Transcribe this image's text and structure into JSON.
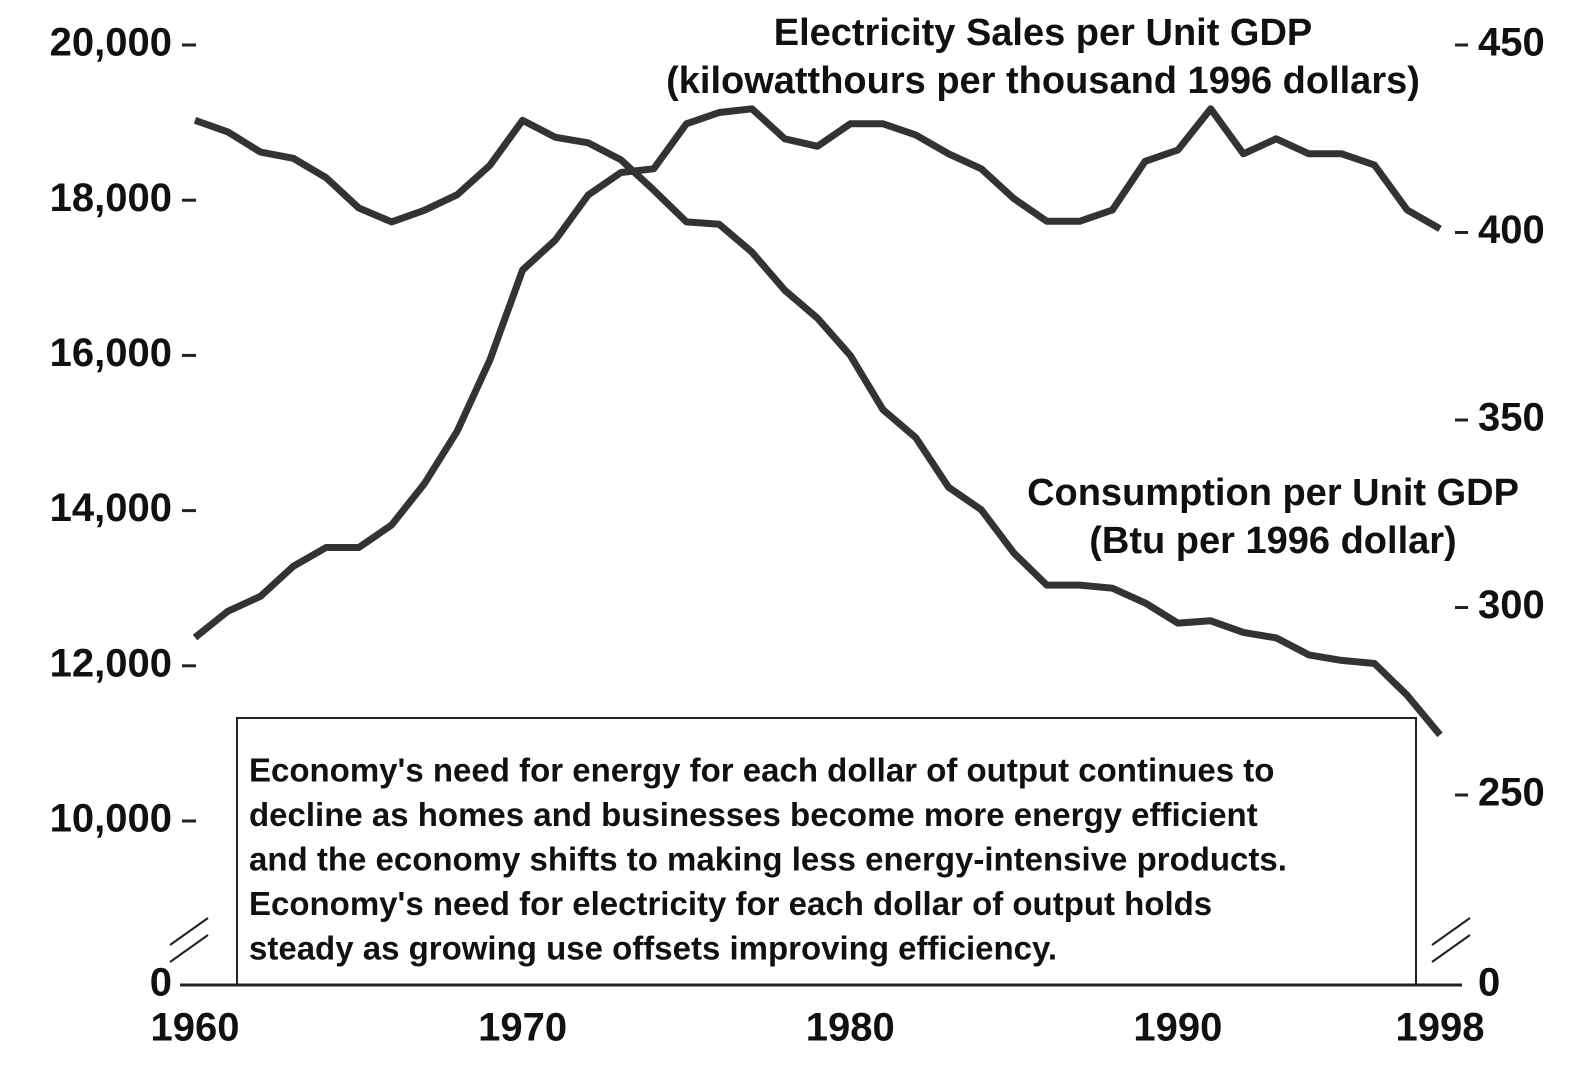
{
  "chart_data": {
    "type": "line",
    "x": [
      1960,
      1961,
      1962,
      1963,
      1964,
      1965,
      1966,
      1967,
      1968,
      1969,
      1970,
      1971,
      1972,
      1973,
      1974,
      1975,
      1976,
      1977,
      1978,
      1979,
      1980,
      1981,
      1982,
      1983,
      1984,
      1985,
      1986,
      1987,
      1988,
      1989,
      1990,
      1991,
      1992,
      1993,
      1994,
      1995,
      1996,
      1997,
      1998
    ],
    "xlim": [
      1960,
      1998
    ],
    "xticks": [
      1960,
      1970,
      1980,
      1990,
      1998
    ],
    "ylim": [
      0,
      20000
    ],
    "yticks": [
      0,
      {
        "value": 10000,
        "label": "10,000"
      },
      {
        "value": 12000,
        "label": "12,000"
      },
      {
        "value": 14000,
        "label": "14,000"
      },
      {
        "value": 16000,
        "label": "16,000"
      },
      {
        "value": 18000,
        "label": "18,000"
      },
      {
        "value": 20000,
        "label": "20,000"
      }
    ],
    "y2lim": [
      0,
      450
    ],
    "y2ticks": [
      0,
      250,
      300,
      350,
      400,
      450
    ],
    "axis_break": true,
    "series": [
      {
        "name": [
          "Consumption per Unit GDP",
          "(Btu per 1996 dollar)"
        ],
        "color": "#333333",
        "values": [
          19030,
          18880,
          18620,
          18540,
          18290,
          17900,
          17720,
          17870,
          18070,
          18450,
          19030,
          18810,
          18740,
          18520,
          18130,
          17720,
          17690,
          17330,
          16840,
          16480,
          16000,
          15300,
          14940,
          14300,
          14010,
          13450,
          13040,
          13040,
          13000,
          12810,
          12550,
          12580,
          12430,
          12360,
          12140,
          12070,
          12030,
          11620,
          11110
        ]
      },
      {
        "name": [
          "Electricity Sales per Unit GDP",
          "(kilowatthours per thousand 1996 dollars)"
        ],
        "color": "#333333",
        "axis": "y2",
        "values": [
          292,
          299,
          303,
          311,
          316,
          316,
          322,
          333,
          347,
          366,
          390,
          398,
          410,
          416,
          417,
          429,
          432,
          433,
          425,
          423,
          429,
          429,
          426,
          421,
          417,
          409,
          403,
          403,
          406,
          419,
          422,
          433,
          421,
          425,
          421,
          421,
          418,
          406,
          401
        ]
      }
    ],
    "annotation": [
      "Economy's need for energy for each dollar of output continues to",
      "decline as homes and businesses become more energy efficient",
      "and the economy shifts to making less energy-intensive products.",
      "Economy's need for electricity for each dollar of output holds",
      "steady as growing use offsets improving efficiency."
    ]
  }
}
